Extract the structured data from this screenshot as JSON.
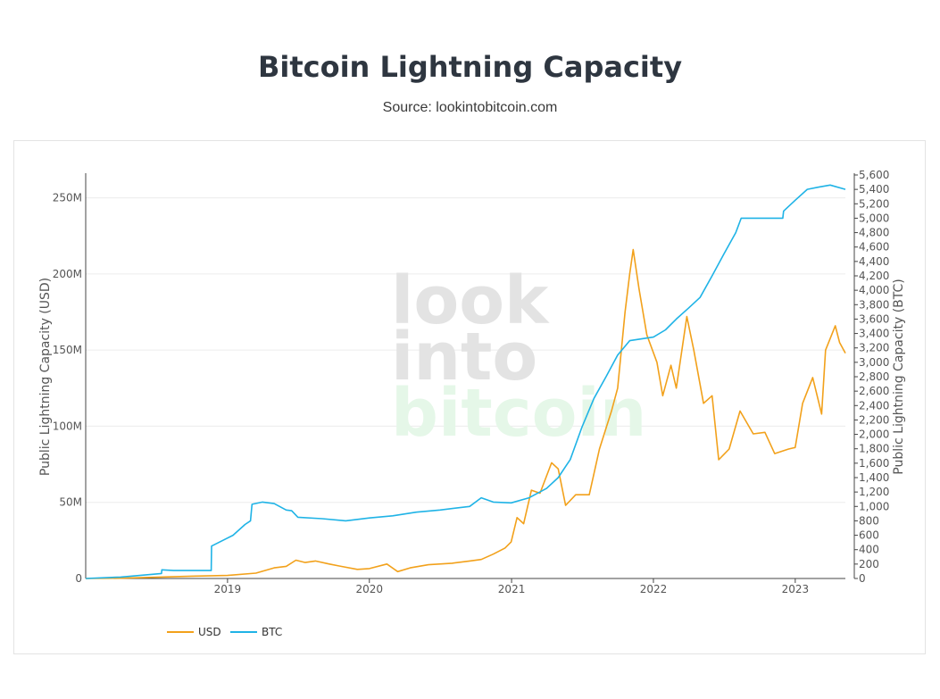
{
  "header": {
    "title": "Bitcoin Lightning Capacity",
    "subtitle": "Source: lookintobitcoin.com"
  },
  "watermark": [
    "look",
    "into",
    "bitcoin"
  ],
  "chart_data": {
    "type": "line",
    "x_range": [
      "2018-01-01",
      "2023-05-10"
    ],
    "x_ticks": [
      "2019",
      "2020",
      "2021",
      "2022",
      "2023"
    ],
    "y_left": {
      "label": "Public Lightning Capacity (USD)",
      "range": [
        0,
        265000000
      ],
      "ticks": [
        0,
        50000000,
        100000000,
        150000000,
        200000000,
        250000000
      ],
      "tick_labels": [
        "0",
        "50M",
        "100M",
        "150M",
        "200M",
        "250M"
      ]
    },
    "y_right": {
      "label": "Public Lightning Capacity (BTC)",
      "range": [
        0,
        5600
      ],
      "ticks": [
        0,
        200,
        400,
        600,
        800,
        1000,
        1200,
        1400,
        1600,
        1800,
        2000,
        2200,
        2400,
        2600,
        2800,
        3000,
        3200,
        3400,
        3600,
        3800,
        4000,
        4200,
        4400,
        4600,
        4800,
        5000,
        5200,
        5400,
        5600
      ],
      "tick_labels": [
        "0",
        "200",
        "400",
        "600",
        "800",
        "1,000",
        "1,200",
        "1,400",
        "1,600",
        "1,800",
        "2,000",
        "2,200",
        "2,400",
        "2,600",
        "2,800",
        "3,000",
        "3,200",
        "3,400",
        "3,600",
        "3,800",
        "4,000",
        "4,200",
        "4,400",
        "4,600",
        "4,800",
        "5,000",
        "5,200",
        "5,400",
        "5,600"
      ]
    },
    "grid": true,
    "legend_position": "bottom-left",
    "series": [
      {
        "name": "USD",
        "axis": "left",
        "color": "#f2a11b",
        "points": [
          [
            "2018-01-01",
            0
          ],
          [
            "2018-04-01",
            200000
          ],
          [
            "2018-07-01",
            800000
          ],
          [
            "2018-10-01",
            1500000
          ],
          [
            "2019-01-01",
            2000000
          ],
          [
            "2019-03-15",
            3500000
          ],
          [
            "2019-05-01",
            7000000
          ],
          [
            "2019-06-01",
            8000000
          ],
          [
            "2019-06-26",
            12000000
          ],
          [
            "2019-07-20",
            10500000
          ],
          [
            "2019-08-15",
            11500000
          ],
          [
            "2019-09-20",
            9500000
          ],
          [
            "2019-10-20",
            8000000
          ],
          [
            "2019-12-01",
            6000000
          ],
          [
            "2020-01-01",
            6500000
          ],
          [
            "2020-02-15",
            9500000
          ],
          [
            "2020-03-14",
            4500000
          ],
          [
            "2020-04-15",
            7000000
          ],
          [
            "2020-06-01",
            9000000
          ],
          [
            "2020-08-01",
            10000000
          ],
          [
            "2020-09-15",
            11500000
          ],
          [
            "2020-10-15",
            12500000
          ],
          [
            "2020-11-15",
            16000000
          ],
          [
            "2020-12-15",
            20000000
          ],
          [
            "2020-12-31",
            24000000
          ],
          [
            "2021-01-15",
            40000000
          ],
          [
            "2021-02-01",
            36000000
          ],
          [
            "2021-02-21",
            58000000
          ],
          [
            "2021-03-15",
            56000000
          ],
          [
            "2021-04-14",
            76000000
          ],
          [
            "2021-05-01",
            72000000
          ],
          [
            "2021-05-20",
            48000000
          ],
          [
            "2021-06-15",
            55000000
          ],
          [
            "2021-07-20",
            55000000
          ],
          [
            "2021-08-15",
            85000000
          ],
          [
            "2021-09-15",
            110000000
          ],
          [
            "2021-10-01",
            125000000
          ],
          [
            "2021-10-20",
            175000000
          ],
          [
            "2021-11-01",
            200000000
          ],
          [
            "2021-11-10",
            216000000
          ],
          [
            "2021-11-25",
            190000000
          ],
          [
            "2021-12-15",
            160000000
          ],
          [
            "2022-01-10",
            142000000
          ],
          [
            "2022-01-25",
            120000000
          ],
          [
            "2022-02-15",
            140000000
          ],
          [
            "2022-03-01",
            125000000
          ],
          [
            "2022-03-28",
            172000000
          ],
          [
            "2022-04-15",
            150000000
          ],
          [
            "2022-05-10",
            115000000
          ],
          [
            "2022-06-01",
            120000000
          ],
          [
            "2022-06-18",
            78000000
          ],
          [
            "2022-07-15",
            85000000
          ],
          [
            "2022-08-12",
            110000000
          ],
          [
            "2022-09-15",
            95000000
          ],
          [
            "2022-10-15",
            96000000
          ],
          [
            "2022-11-09",
            82000000
          ],
          [
            "2022-12-15",
            85000000
          ],
          [
            "2023-01-01",
            86000000
          ],
          [
            "2023-01-20",
            115000000
          ],
          [
            "2023-02-15",
            132000000
          ],
          [
            "2023-03-10",
            108000000
          ],
          [
            "2023-03-20",
            150000000
          ],
          [
            "2023-04-14",
            166000000
          ],
          [
            "2023-04-25",
            155000000
          ],
          [
            "2023-05-10",
            148000000
          ]
        ]
      },
      {
        "name": "BTC",
        "axis": "right",
        "color": "#1fb3e6",
        "points": [
          [
            "2018-01-01",
            0
          ],
          [
            "2018-04-01",
            20
          ],
          [
            "2018-07-15",
            70
          ],
          [
            "2018-07-16",
            120
          ],
          [
            "2018-08-15",
            110
          ],
          [
            "2018-11-20",
            110
          ],
          [
            "2018-11-21",
            450
          ],
          [
            "2019-01-15",
            600
          ],
          [
            "2019-02-15",
            750
          ],
          [
            "2019-03-01",
            800
          ],
          [
            "2019-03-05",
            1030
          ],
          [
            "2019-04-01",
            1060
          ],
          [
            "2019-05-01",
            1040
          ],
          [
            "2019-06-01",
            950
          ],
          [
            "2019-06-15",
            940
          ],
          [
            "2019-07-01",
            850
          ],
          [
            "2019-09-01",
            830
          ],
          [
            "2019-11-01",
            800
          ],
          [
            "2020-01-01",
            840
          ],
          [
            "2020-03-01",
            870
          ],
          [
            "2020-05-01",
            920
          ],
          [
            "2020-07-01",
            950
          ],
          [
            "2020-09-15",
            1000
          ],
          [
            "2020-10-15",
            1120
          ],
          [
            "2020-11-15",
            1060
          ],
          [
            "2020-12-31",
            1050
          ],
          [
            "2021-02-15",
            1120
          ],
          [
            "2021-04-01",
            1250
          ],
          [
            "2021-05-01",
            1400
          ],
          [
            "2021-06-01",
            1650
          ],
          [
            "2021-07-01",
            2100
          ],
          [
            "2021-08-01",
            2500
          ],
          [
            "2021-09-01",
            2800
          ],
          [
            "2021-10-01",
            3100
          ],
          [
            "2021-11-01",
            3300
          ],
          [
            "2022-01-01",
            3350
          ],
          [
            "2022-02-01",
            3450
          ],
          [
            "2022-03-01",
            3600
          ],
          [
            "2022-04-01",
            3750
          ],
          [
            "2022-05-01",
            3900
          ],
          [
            "2022-06-01",
            4200
          ],
          [
            "2022-07-01",
            4500
          ],
          [
            "2022-08-01",
            4800
          ],
          [
            "2022-08-15",
            5000
          ],
          [
            "2022-11-30",
            5000
          ],
          [
            "2022-12-02",
            5100
          ],
          [
            "2023-01-01",
            5250
          ],
          [
            "2023-02-01",
            5400
          ],
          [
            "2023-03-01",
            5430
          ],
          [
            "2023-04-01",
            5460
          ],
          [
            "2023-05-10",
            5400
          ]
        ]
      }
    ]
  }
}
